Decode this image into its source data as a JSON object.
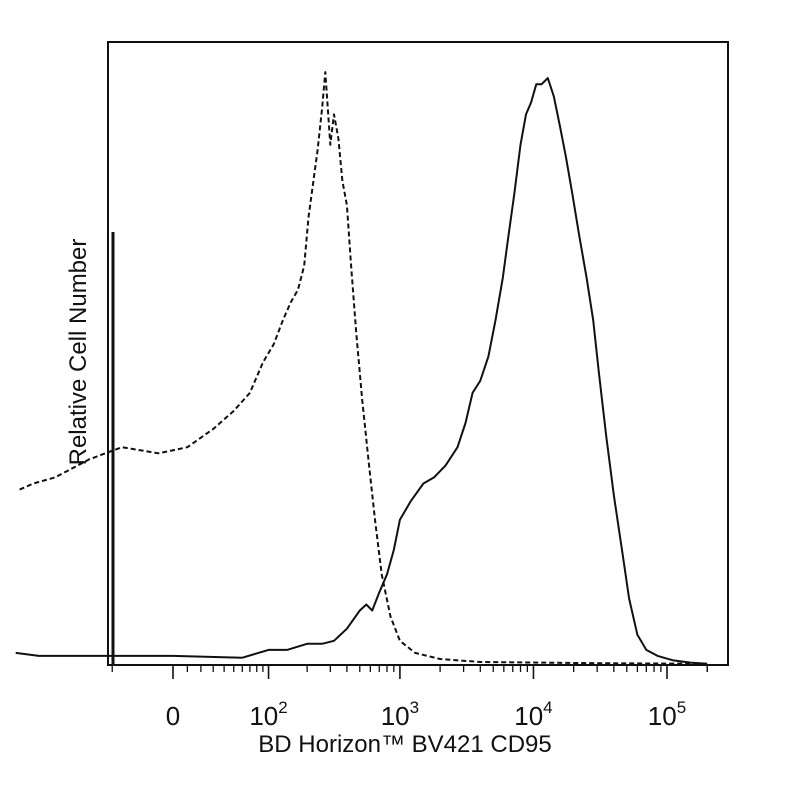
{
  "chart_data": {
    "type": "line",
    "title": "",
    "xlabel": "BD Horizon™ BV421 CD95",
    "ylabel": "Relative Cell Number",
    "x_scale": "biexponential",
    "x_ticks": [
      {
        "value": 0,
        "base": "0",
        "exp": ""
      },
      {
        "value": 100,
        "base": "10",
        "exp": "2"
      },
      {
        "value": 1000,
        "base": "10",
        "exp": "3"
      },
      {
        "value": 10000,
        "base": "10",
        "exp": "4"
      },
      {
        "value": 100000,
        "base": "10",
        "exp": "5"
      }
    ],
    "xlim": [
      -300,
      250000
    ],
    "ylim": [
      0,
      100
    ],
    "grid": false,
    "legend": "none",
    "series": [
      {
        "style": "dashed",
        "color": "#111111",
        "points": [
          [
            -280,
            29
          ],
          [
            -220,
            30
          ],
          [
            -150,
            31
          ],
          [
            -80,
            34
          ],
          [
            -40,
            36
          ],
          [
            -10,
            35
          ],
          [
            10,
            36
          ],
          [
            30,
            39
          ],
          [
            50,
            42
          ],
          [
            70,
            45
          ],
          [
            90,
            50
          ],
          [
            110,
            53
          ],
          [
            130,
            57
          ],
          [
            150,
            60
          ],
          [
            170,
            62
          ],
          [
            190,
            66
          ],
          [
            205,
            74
          ],
          [
            220,
            79
          ],
          [
            240,
            85
          ],
          [
            260,
            92
          ],
          [
            275,
            98
          ],
          [
            300,
            86
          ],
          [
            320,
            91
          ],
          [
            345,
            87
          ],
          [
            370,
            80
          ],
          [
            400,
            76
          ],
          [
            430,
            66
          ],
          [
            470,
            55
          ],
          [
            520,
            44
          ],
          [
            580,
            34
          ],
          [
            650,
            24
          ],
          [
            730,
            15
          ],
          [
            850,
            8
          ],
          [
            1000,
            4
          ],
          [
            1300,
            2
          ],
          [
            2000,
            1
          ],
          [
            4000,
            0.5
          ],
          [
            30000,
            0.3
          ],
          [
            200000,
            0.2
          ]
        ]
      },
      {
        "style": "solid",
        "color": "#111111",
        "points": [
          [
            -300,
            2
          ],
          [
            -200,
            1.5
          ],
          [
            -100,
            1.5
          ],
          [
            0,
            1.5
          ],
          [
            60,
            1.2
          ],
          [
            100,
            2.5
          ],
          [
            140,
            2.5
          ],
          [
            200,
            3.5
          ],
          [
            260,
            3.5
          ],
          [
            320,
            4
          ],
          [
            400,
            6
          ],
          [
            500,
            9
          ],
          [
            560,
            10
          ],
          [
            620,
            9
          ],
          [
            700,
            12
          ],
          [
            800,
            15
          ],
          [
            900,
            19
          ],
          [
            1000,
            24
          ],
          [
            1200,
            27
          ],
          [
            1500,
            30
          ],
          [
            1800,
            31
          ],
          [
            2200,
            33
          ],
          [
            2700,
            36
          ],
          [
            3100,
            40
          ],
          [
            3500,
            45
          ],
          [
            4000,
            47
          ],
          [
            4600,
            51
          ],
          [
            5200,
            57
          ],
          [
            5900,
            64
          ],
          [
            6500,
            71
          ],
          [
            7200,
            78
          ],
          [
            8000,
            86
          ],
          [
            8800,
            91
          ],
          [
            9600,
            93
          ],
          [
            10500,
            96
          ],
          [
            11500,
            96
          ],
          [
            12800,
            97
          ],
          [
            14200,
            94
          ],
          [
            15800,
            89
          ],
          [
            17500,
            84
          ],
          [
            19500,
            78
          ],
          [
            22000,
            71
          ],
          [
            25000,
            64
          ],
          [
            28000,
            57
          ],
          [
            31000,
            48
          ],
          [
            35000,
            38
          ],
          [
            40000,
            28
          ],
          [
            46000,
            19
          ],
          [
            52000,
            11
          ],
          [
            60000,
            5
          ],
          [
            70000,
            2.5
          ],
          [
            85000,
            1.5
          ],
          [
            110000,
            0.8
          ],
          [
            150000,
            0.4
          ],
          [
            200000,
            0.2
          ]
        ]
      }
    ]
  }
}
